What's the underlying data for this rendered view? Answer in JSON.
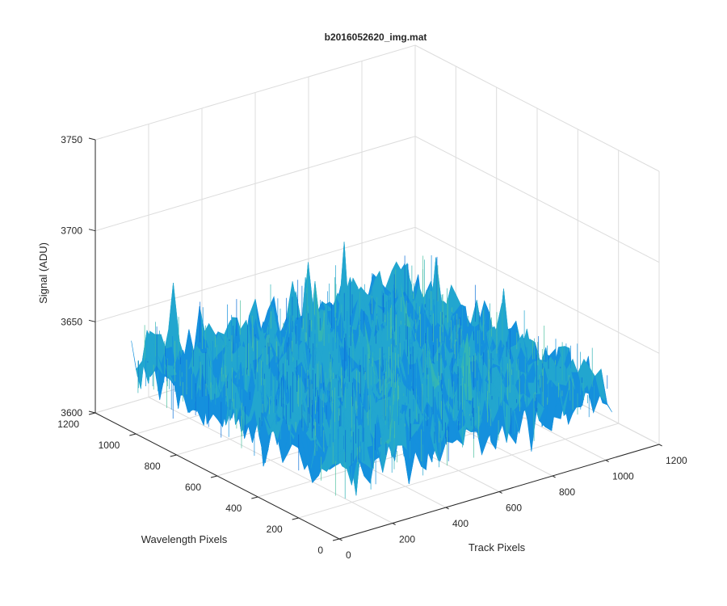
{
  "chart_data": {
    "type": "surface",
    "title": "b2016052620_img.mat",
    "xlabel": "Track Pixels",
    "ylabel": "Wavelength Pixels",
    "zlabel": "Signal (ADU)",
    "xlim": [
      0,
      1200
    ],
    "ylim": [
      0,
      1200
    ],
    "zlim": [
      3600,
      3750
    ],
    "xticks": [
      "0",
      "200",
      "400",
      "600",
      "800",
      "1000",
      "1200"
    ],
    "yticks": [
      "0",
      "200",
      "400",
      "600",
      "800",
      "1000",
      "1200"
    ],
    "zticks": [
      "3600",
      "3650",
      "3700",
      "3750"
    ],
    "grid": true,
    "surface": {
      "x_range": [
        1,
        1024
      ],
      "y_range": [
        1,
        1024
      ],
      "mean_signal": 3638,
      "typical_min": 3620,
      "typical_max": 3670,
      "colormap": "parula",
      "colors": [
        "#0b6fd8",
        "#1590dd",
        "#22a6cf",
        "#33b5b5",
        "#4fc1a0"
      ]
    }
  }
}
